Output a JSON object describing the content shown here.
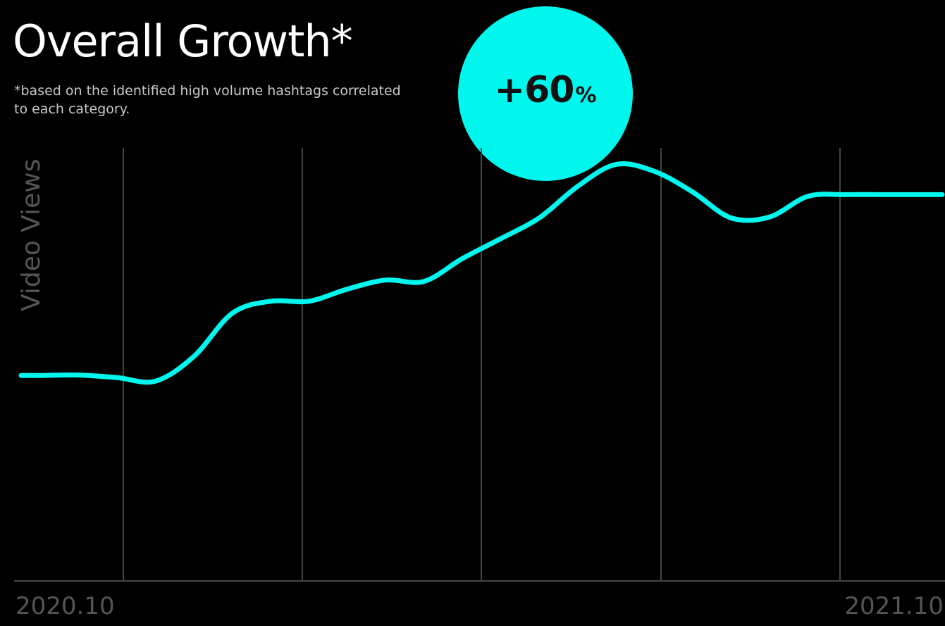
{
  "title": "Overall Growth*",
  "footnote": "*based on the identified high volume hashtags correlated to each category.",
  "badge": {
    "value": "+60",
    "unit": "%",
    "color": "#00f7ee"
  },
  "chart_data": {
    "type": "line",
    "title": "Overall Growth*",
    "ylabel": "Video Views",
    "x_tick_labels": [
      "2020.10",
      "2021.10"
    ],
    "xlim": [
      0,
      12
    ],
    "ylim": [
      0,
      100
    ],
    "grid": {
      "vertical": true,
      "horizontal": false
    },
    "line_color": "#00f7ee",
    "grid_color": "#444444",
    "axis_text_color": "#555555",
    "series": [
      {
        "x": [
          0,
          0.25,
          0.75,
          1.25,
          1.75,
          2.25,
          2.75,
          3.25,
          3.75,
          4.25,
          4.75,
          5.25,
          5.75,
          6.25,
          6.75,
          7.25,
          7.75,
          8.25,
          8.75,
          9.25,
          9.75,
          10.25,
          10.75,
          11.25,
          11.75,
          12
        ],
        "y": [
          47.6,
          47.6,
          47.7,
          47.1,
          46.3,
          52.0,
          62.0,
          64.8,
          64.8,
          67.6,
          69.7,
          69.4,
          74.7,
          79.3,
          84.1,
          91.4,
          96.5,
          94.9,
          90.1,
          84.1,
          84.3,
          89.1,
          89.5,
          89.5,
          89.5,
          89.5
        ]
      }
    ]
  }
}
